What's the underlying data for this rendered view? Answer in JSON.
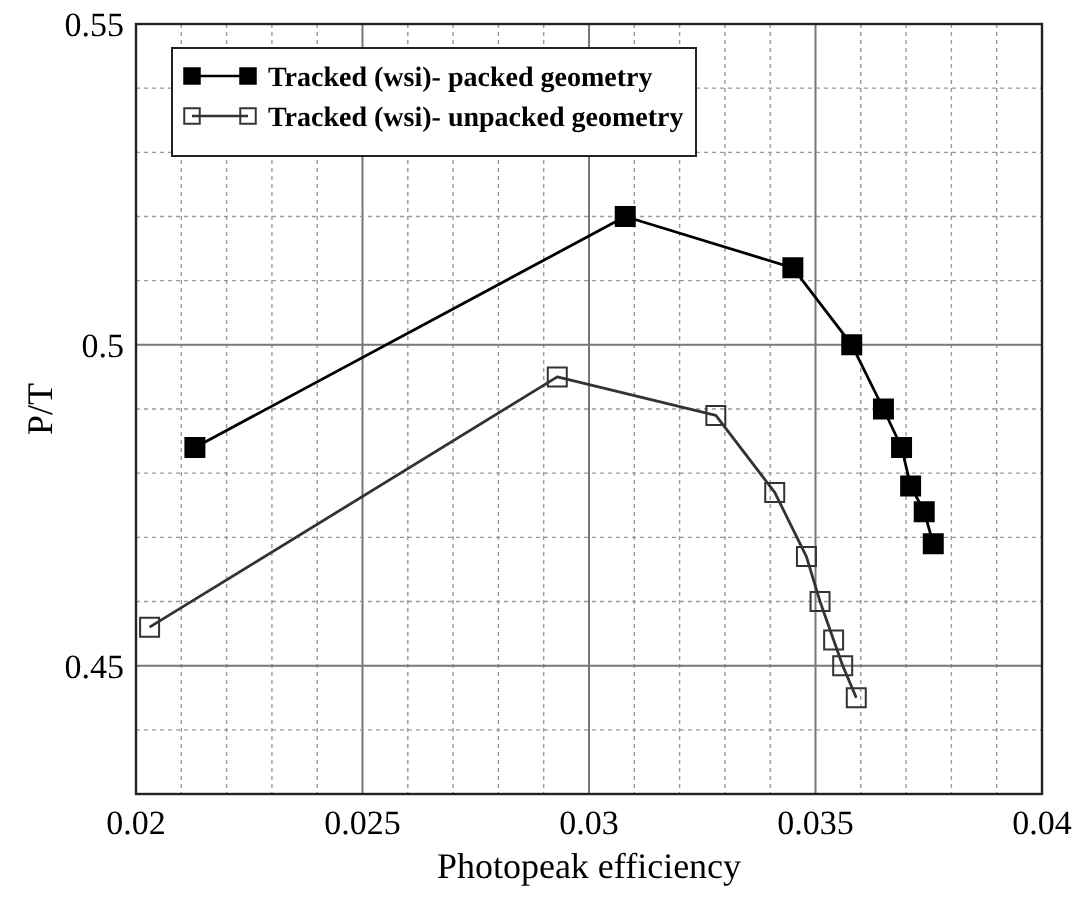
{
  "chart_data": {
    "type": "line",
    "xlabel": "Photopeak efficiency",
    "ylabel": "P/T",
    "xlim": [
      0.02,
      0.04
    ],
    "ylim": [
      0.43,
      0.55
    ],
    "xticks": [
      0.02,
      {
        "value": 0.021,
        "label": null
      },
      {
        "value": 0.022,
        "label": null
      },
      {
        "value": 0.023,
        "label": null
      },
      {
        "value": 0.024,
        "label": null
      },
      0.025,
      {
        "value": 0.026,
        "label": null
      },
      {
        "value": 0.027,
        "label": null
      },
      {
        "value": 0.028,
        "label": null
      },
      {
        "value": 0.029,
        "label": null
      },
      0.03,
      {
        "value": 0.031,
        "label": null
      },
      {
        "value": 0.032,
        "label": null
      },
      {
        "value": 0.033,
        "label": null
      },
      {
        "value": 0.034,
        "label": null
      },
      0.035,
      {
        "value": 0.036,
        "label": null
      },
      {
        "value": 0.037,
        "label": null
      },
      {
        "value": 0.038,
        "label": null
      },
      {
        "value": 0.039,
        "label": null
      },
      0.04
    ],
    "yticks": [
      {
        "value": 0.44,
        "label": null
      },
      0.45,
      {
        "value": 0.46,
        "label": null
      },
      {
        "value": 0.47,
        "label": null
      },
      {
        "value": 0.48,
        "label": null
      },
      {
        "value": 0.49,
        "label": null
      },
      0.5,
      {
        "value": 0.51,
        "label": null
      },
      {
        "value": 0.52,
        "label": null
      },
      {
        "value": 0.53,
        "label": null
      },
      {
        "value": 0.54,
        "label": null
      },
      0.55
    ],
    "grid": true,
    "legend": "top left",
    "marker": "square",
    "line_style": "solid",
    "series": [
      {
        "name": "Tracked (wsi)- packed geometry",
        "color": "#000000",
        "x": [
          0.0213,
          0.0308,
          0.0345,
          0.0358,
          0.0365,
          0.0369,
          0.0371,
          0.0374,
          0.0376
        ],
        "values": [
          0.484,
          0.52,
          0.512,
          0.5,
          0.49,
          0.484,
          0.478,
          0.474,
          0.469
        ]
      },
      {
        "name": "Tracked (wsi)- unpacked geometry",
        "color": "#333333",
        "x": [
          0.0203,
          0.0293,
          0.0328,
          0.0341,
          0.0348,
          0.0351,
          0.0354,
          0.0356,
          0.0359
        ],
        "values": [
          0.456,
          0.495,
          0.489,
          0.477,
          0.467,
          0.46,
          0.454,
          0.45,
          0.445
        ]
      }
    ]
  }
}
